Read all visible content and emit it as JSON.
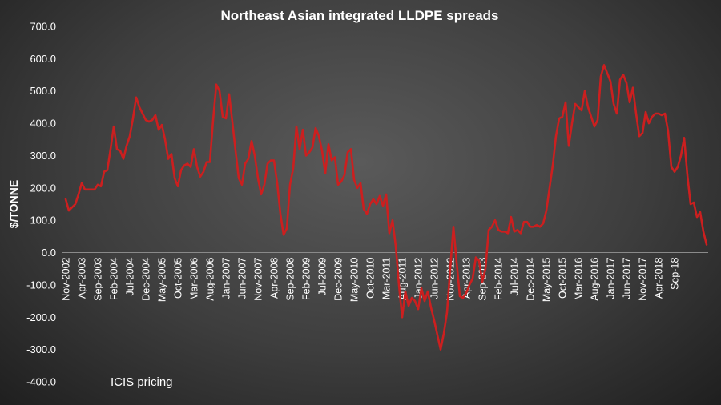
{
  "chart_data": {
    "type": "line",
    "title": "Northeast Asian integrated LLDPE spreads",
    "ylabel": "$/TONNE",
    "xlabel": "",
    "ylim": [
      -400,
      700
    ],
    "yticks": [
      "700.0",
      "600.0",
      "500.0",
      "400.0",
      "300.0",
      "200.0",
      "100.0",
      "0.0",
      "-100.0",
      "-200.0",
      "-300.0",
      "-400.0"
    ],
    "ytick_values": [
      700,
      600,
      500,
      400,
      300,
      200,
      100,
      0,
      -100,
      -200,
      -300,
      -400
    ],
    "xticks": [
      "Nov-2002",
      "Apr-2003",
      "Sep-2003",
      "Feb-2004",
      "Jul-2004",
      "Dec-2004",
      "May-2005",
      "Oct-2005",
      "Mar-2006",
      "Aug-2006",
      "Jan-2007",
      "Jun-2007",
      "Nov-2007",
      "Apr-2008",
      "Sep-2008",
      "Feb-2009",
      "Jul-2009",
      "Dec-2009",
      "May-2010",
      "Oct-2010",
      "Mar-2011",
      "Aug-2011",
      "Jan-2012",
      "Jun-2012",
      "Nov-2012",
      "Apr-2013",
      "Sep-2013",
      "Feb-2014",
      "Jul-2014",
      "Dec-2014",
      "May-2015",
      "Oct-2015",
      "Mar-2016",
      "Aug-2016",
      "Jan-2017",
      "Jun-2017",
      "Nov-2017",
      "Apr-2018",
      "Sep-18"
    ],
    "grid": false,
    "legend": "none",
    "annotation": "ICIS pricing",
    "colors": {
      "line": "#cc1f1f"
    },
    "series": [
      {
        "x_start": "Nov-2002",
        "frequency": "monthly",
        "values": [
          165,
          130,
          140,
          150,
          180,
          215,
          195,
          195,
          195,
          195,
          210,
          205,
          250,
          255,
          320,
          390,
          320,
          315,
          290,
          330,
          360,
          415,
          480,
          450,
          430,
          410,
          405,
          410,
          425,
          380,
          395,
          350,
          290,
          305,
          230,
          205,
          255,
          270,
          275,
          265,
          320,
          265,
          235,
          250,
          280,
          280,
          410,
          520,
          500,
          420,
          415,
          490,
          405,
          315,
          230,
          210,
          275,
          290,
          345,
          300,
          230,
          180,
          210,
          275,
          285,
          285,
          215,
          120,
          55,
          75,
          210,
          260,
          390,
          320,
          380,
          300,
          310,
          325,
          385,
          360,
          315,
          245,
          335,
          285,
          295,
          210,
          220,
          240,
          310,
          320,
          225,
          200,
          215,
          135,
          120,
          150,
          165,
          150,
          175,
          145,
          180,
          60,
          100,
          20,
          -100,
          -200,
          -120,
          -165,
          -140,
          -150,
          -175,
          -110,
          -150,
          -120,
          -170,
          -210,
          -255,
          -300,
          -250,
          -185,
          -50,
          80,
          -30,
          -135,
          -140,
          -125,
          -100,
          -80,
          -15,
          -25,
          -90,
          -50,
          70,
          80,
          100,
          70,
          65,
          65,
          60,
          110,
          65,
          70,
          60,
          95,
          95,
          80,
          80,
          85,
          80,
          90,
          130,
          200,
          270,
          360,
          415,
          420,
          465,
          330,
          400,
          460,
          450,
          440,
          500,
          450,
          420,
          390,
          410,
          545,
          580,
          555,
          530,
          460,
          430,
          535,
          550,
          525,
          465,
          510,
          430,
          360,
          370,
          435,
          400,
          420,
          430,
          430,
          425,
          430,
          375,
          265,
          250,
          265,
          300,
          355,
          240,
          150,
          155,
          110,
          125,
          65,
          25
        ]
      }
    ]
  }
}
